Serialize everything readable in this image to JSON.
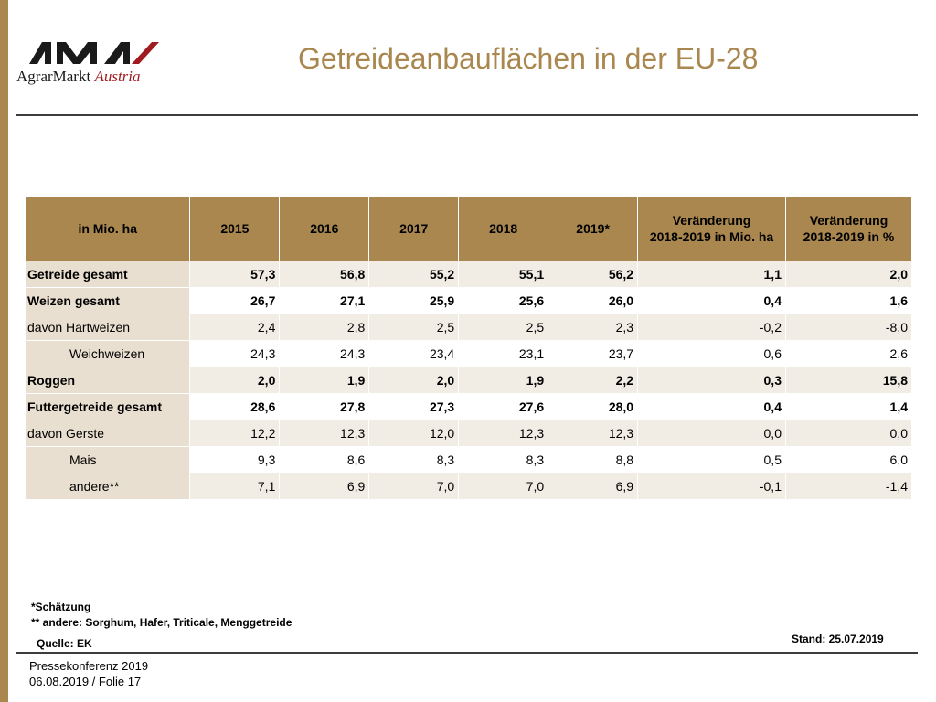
{
  "brand": {
    "logo_word": "AMA",
    "logo_prefix": "AgrarMarkt",
    "logo_suffix": "Austria",
    "accent_color": "#a11a1f",
    "gold_color": "#a9874f"
  },
  "title": "Getreideanbauflächen in der EU-28",
  "table": {
    "headers": [
      "in Mio. ha",
      "2015",
      "2016",
      "2017",
      "2018",
      "2019*",
      "Veränderung 2018-2019 in Mio. ha",
      "Veränderung 2018-2019 in %"
    ],
    "header_h7_line1": "Veränderung",
    "header_h7_line2": "2018-2019 in Mio. ha",
    "header_h8_line1": "Veränderung",
    "header_h8_line2": "2018-2019 in %",
    "rows": [
      {
        "label": "Getreide gesamt",
        "values": [
          "57,3",
          "56,8",
          "55,2",
          "55,1",
          "56,2",
          "1,1",
          "2,0"
        ]
      },
      {
        "label": "Weizen gesamt",
        "values": [
          "26,7",
          "27,1",
          "25,9",
          "25,6",
          "26,0",
          "0,4",
          "1,6"
        ]
      },
      {
        "label": "davon Hartweizen",
        "values": [
          "2,4",
          "2,8",
          "2,5",
          "2,5",
          "2,3",
          "-0,2",
          "-8,0"
        ]
      },
      {
        "label": "Weichweizen",
        "values": [
          "24,3",
          "24,3",
          "23,4",
          "23,1",
          "23,7",
          "0,6",
          "2,6"
        ]
      },
      {
        "label": "Roggen",
        "values": [
          "2,0",
          "1,9",
          "2,0",
          "1,9",
          "2,2",
          "0,3",
          "15,8"
        ]
      },
      {
        "label": "Futtergetreide gesamt",
        "values": [
          "28,6",
          "27,8",
          "27,3",
          "27,6",
          "28,0",
          "0,4",
          "1,4"
        ]
      },
      {
        "label": "davon Gerste",
        "values": [
          "12,2",
          "12,3",
          "12,0",
          "12,3",
          "12,3",
          "0,0",
          "0,0"
        ]
      },
      {
        "label": "Mais",
        "values": [
          "9,3",
          "8,6",
          "8,3",
          "8,3",
          "8,8",
          "0,5",
          "6,0"
        ]
      },
      {
        "label": "andere**",
        "values": [
          "7,1",
          "6,9",
          "7,0",
          "7,0",
          "6,9",
          "-0,1",
          "-1,4"
        ]
      }
    ]
  },
  "footnotes": {
    "estimate": "*Schätzung",
    "others": "** andere: Sorghum, Hafer, Triticale, Menggetreide",
    "source": "Quelle: EK",
    "stand": "Stand: 25.07.2019"
  },
  "footer": {
    "event": "Pressekonferenz 2019",
    "date_slide": "06.08.2019 / Folie 17"
  }
}
